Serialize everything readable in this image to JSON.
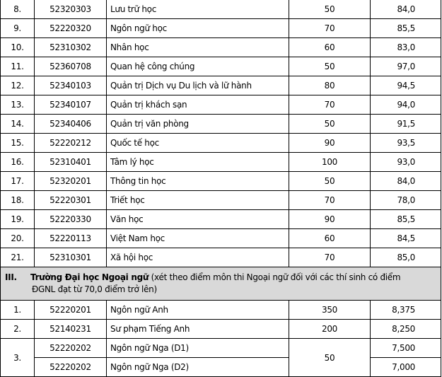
{
  "rows_top": [
    {
      "stt": "8.",
      "code": "52320303",
      "name": "Lưu trữ học",
      "quota": "50",
      "score": "84,0"
    },
    {
      "stt": "9.",
      "code": "52220320",
      "name": "Ngôn ngữ học",
      "quota": "70",
      "score": "85,5"
    },
    {
      "stt": "10.",
      "code": "52310302",
      "name": "Nhân học",
      "quota": "60",
      "score": "83,0"
    },
    {
      "stt": "11.",
      "code": "52360708",
      "name": "Quan hệ công chúng",
      "quota": "50",
      "score": "97,0"
    },
    {
      "stt": "12.",
      "code": "52340103",
      "name": "Quản trị Dịch vụ Du lịch và lữ hành",
      "quota": "80",
      "score": "94,5"
    },
    {
      "stt": "13.",
      "code": "52340107",
      "name": "Quản trị khách sạn",
      "quota": "70",
      "score": "94,0"
    },
    {
      "stt": "14.",
      "code": "52340406",
      "name": "Quản trị văn phòng",
      "quota": "50",
      "score": "91,5"
    },
    {
      "stt": "15.",
      "code": "52220212",
      "name": "Quốc tế học",
      "quota": "90",
      "score": "93,5"
    },
    {
      "stt": "16.",
      "code": "52310401",
      "name": "Tâm lý học",
      "quota": "100",
      "score": "93,0"
    },
    {
      "stt": "17.",
      "code": "52320201",
      "name": "Thông tin học",
      "quota": "50",
      "score": "84,0"
    },
    {
      "stt": "18.",
      "code": "52220301",
      "name": "Triết học",
      "quota": "70",
      "score": "78,0"
    },
    {
      "stt": "19.",
      "code": "52220330",
      "name": "Văn học",
      "quota": "90",
      "score": "85,5"
    },
    {
      "stt": "20.",
      "code": "52220113",
      "name": "Việt Nam học",
      "quota": "60",
      "score": "84,5"
    },
    {
      "stt": "21.",
      "code": "52310301",
      "name": "Xã hội học",
      "quota": "70",
      "score": "85,0"
    }
  ],
  "section": {
    "roman": "III.",
    "name": "Trường Đại học Ngoại ngữ",
    "desc_line1": " (xét theo điểm môn thi Ngoại ngữ đối với các thí sinh có điểm",
    "desc_line2": "ĐGNL đạt từ 70,0 điểm trở lên)"
  },
  "rows_bottom": [
    {
      "stt": "1.",
      "code": "52220201",
      "name": "Ngôn ngữ Anh",
      "quota": "350",
      "score": "8,375"
    },
    {
      "stt": "2.",
      "code": "52140231",
      "name": "Sư phạm Tiếng Anh",
      "quota": "200",
      "score": "8,250"
    }
  ],
  "merged": {
    "stt": "3.",
    "quota": "50",
    "rows": [
      {
        "code": "52220202",
        "name": "Ngôn ngữ Nga (D1)",
        "score": "7,500"
      },
      {
        "code": "52220202",
        "name": "Ngôn ngữ Nga (D2)",
        "score": "7,000"
      }
    ]
  }
}
